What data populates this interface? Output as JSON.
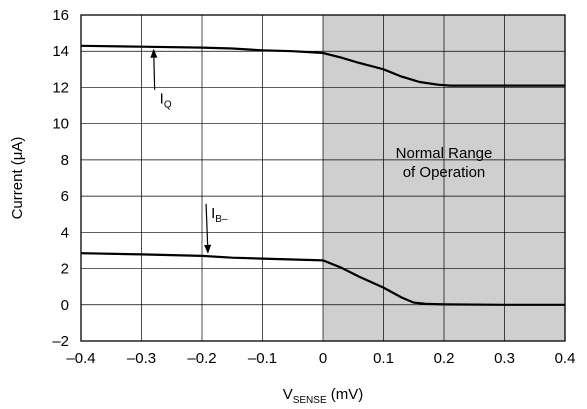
{
  "chart_data": {
    "type": "line",
    "title": "",
    "xlabel": {
      "main": "V",
      "sub": "SENSE",
      "suffix": " (mV)"
    },
    "ylabel": "Current (μA)",
    "xlim": [
      -0.4,
      0.4
    ],
    "ylim": [
      -2,
      16
    ],
    "xticks": [
      -0.4,
      -0.3,
      -0.2,
      -0.1,
      0,
      0.1,
      0.2,
      0.3,
      0.4
    ],
    "xtick_labels": [
      "–0.4",
      "–0.3",
      "–0.2",
      "–0.1",
      "0",
      "0.1",
      "0.2",
      "0.3",
      "0.4"
    ],
    "yticks": [
      -2,
      0,
      2,
      4,
      6,
      8,
      10,
      12,
      14,
      16
    ],
    "ytick_labels": [
      "–2",
      "0",
      "2",
      "4",
      "6",
      "8",
      "10",
      "12",
      "14",
      "16"
    ],
    "grid": true,
    "shaded_region": {
      "x": [
        0,
        0.4
      ],
      "color": "#cfcfcf"
    },
    "region_label": [
      "Normal Range",
      "of Operation"
    ],
    "series": [
      {
        "label_main": "I",
        "label_sub": "Q",
        "x": [
          -0.4,
          -0.3,
          -0.2,
          -0.15,
          -0.1,
          -0.05,
          0,
          0.03,
          0.06,
          0.1,
          0.13,
          0.16,
          0.19,
          0.21,
          0.25,
          0.3,
          0.4
        ],
        "y": [
          14.3,
          14.25,
          14.2,
          14.15,
          14.05,
          14.0,
          13.9,
          13.65,
          13.35,
          13.0,
          12.6,
          12.3,
          12.15,
          12.1,
          12.1,
          12.1,
          12.1
        ],
        "label_at": [
          -0.27,
          11.1
        ],
        "arrow_to": [
          -0.28,
          14.25
        ]
      },
      {
        "label_main": "I",
        "label_sub": "B–",
        "x": [
          -0.4,
          -0.3,
          -0.2,
          -0.15,
          -0.1,
          -0.05,
          0,
          0.03,
          0.06,
          0.1,
          0.13,
          0.15,
          0.17,
          0.2,
          0.3,
          0.4
        ],
        "y": [
          2.85,
          2.78,
          2.7,
          2.6,
          2.55,
          2.5,
          2.45,
          2.05,
          1.55,
          0.95,
          0.4,
          0.12,
          0.05,
          0.02,
          0.0,
          0.0
        ],
        "label_at": [
          -0.185,
          4.8
        ],
        "arrow_to": [
          -0.19,
          2.7
        ]
      }
    ]
  }
}
